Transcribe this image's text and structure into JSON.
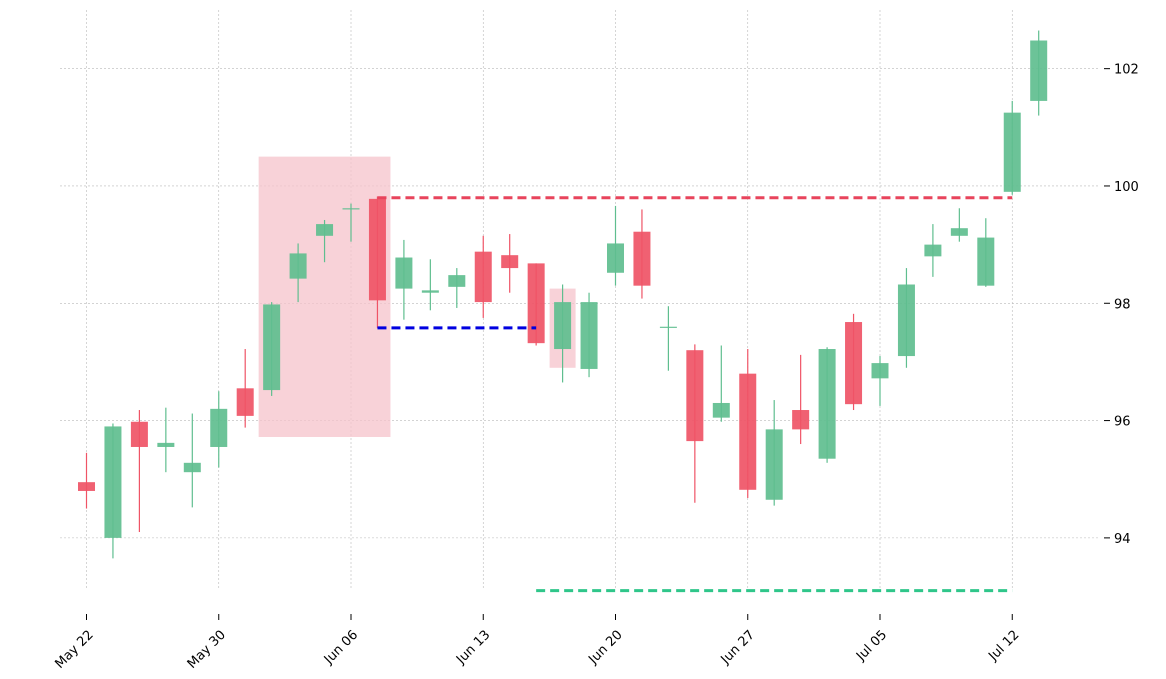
{
  "chart_data": {
    "type": "candlestick",
    "title": "",
    "xlabel": "",
    "ylabel": "",
    "ylim": [
      92.6,
      103.0
    ],
    "grid": true,
    "colors": {
      "up": "#5fbe8f",
      "down": "#ef5466",
      "highlight": "#f6c3cb",
      "resistance": "#e8445c",
      "entry": "#0000e0",
      "target": "#2fc68a",
      "grid": "#b9b9b9"
    },
    "y_ticks": [
      94,
      96,
      98,
      100,
      102
    ],
    "x_ticks": [
      "May 22",
      "May 30",
      "Jun 06",
      "Jun 13",
      "Jun 20",
      "Jun 27",
      "Jul 05",
      "Jul 12"
    ],
    "candles": [
      {
        "open": 94.95,
        "high": 95.45,
        "low": 94.5,
        "close": 94.8
      },
      {
        "open": 94.0,
        "high": 95.95,
        "low": 93.65,
        "close": 95.9
      },
      {
        "open": 95.98,
        "high": 96.18,
        "low": 94.1,
        "close": 95.55
      },
      {
        "open": 95.55,
        "high": 96.22,
        "low": 95.12,
        "close": 95.62
      },
      {
        "open": 95.12,
        "high": 96.12,
        "low": 94.52,
        "close": 95.28
      },
      {
        "open": 95.55,
        "high": 96.5,
        "low": 95.2,
        "close": 96.2
      },
      {
        "open": 96.55,
        "high": 97.22,
        "low": 95.88,
        "close": 96.08
      },
      {
        "open": 96.52,
        "high": 98.02,
        "low": 96.42,
        "close": 97.98
      },
      {
        "open": 98.42,
        "high": 99.02,
        "low": 98.02,
        "close": 98.85
      },
      {
        "open": 99.15,
        "high": 99.42,
        "low": 98.7,
        "close": 99.35
      },
      {
        "open": 99.62,
        "high": 99.7,
        "low": 99.05,
        "close": 99.62
      },
      {
        "open": 99.78,
        "high": 99.82,
        "low": 97.58,
        "close": 98.05
      },
      {
        "open": 98.25,
        "high": 99.08,
        "low": 97.72,
        "close": 98.78
      },
      {
        "open": 98.18,
        "high": 98.75,
        "low": 97.88,
        "close": 98.22
      },
      {
        "open": 98.28,
        "high": 98.6,
        "low": 97.92,
        "close": 98.48
      },
      {
        "open": 98.88,
        "high": 99.15,
        "low": 97.75,
        "close": 98.02
      },
      {
        "open": 98.82,
        "high": 99.18,
        "low": 98.18,
        "close": 98.6
      },
      {
        "open": 98.68,
        "high": 98.68,
        "low": 97.28,
        "close": 97.32
      },
      {
        "open": 97.22,
        "high": 98.32,
        "low": 96.65,
        "close": 98.02
      },
      {
        "open": 96.88,
        "high": 98.18,
        "low": 96.74,
        "close": 98.02
      },
      {
        "open": 98.52,
        "high": 99.66,
        "low": 98.3,
        "close": 99.02
      },
      {
        "open": 99.22,
        "high": 99.6,
        "low": 98.08,
        "close": 98.3
      },
      {
        "open": 97.6,
        "high": 97.95,
        "low": 96.85,
        "close": 97.6
      },
      {
        "open": 97.2,
        "high": 97.3,
        "low": 94.6,
        "close": 95.65
      },
      {
        "open": 96.05,
        "high": 97.28,
        "low": 95.98,
        "close": 96.3
      },
      {
        "open": 96.8,
        "high": 97.22,
        "low": 94.68,
        "close": 94.82
      },
      {
        "open": 94.65,
        "high": 96.35,
        "low": 94.55,
        "close": 95.85
      },
      {
        "open": 96.18,
        "high": 97.12,
        "low": 95.6,
        "close": 95.85
      },
      {
        "open": 95.35,
        "high": 97.25,
        "low": 95.28,
        "close": 97.22
      },
      {
        "open": 97.68,
        "high": 97.82,
        "low": 96.18,
        "close": 96.28
      },
      {
        "open": 96.72,
        "high": 97.1,
        "low": 96.25,
        "close": 96.98
      },
      {
        "open": 97.1,
        "high": 98.6,
        "low": 96.9,
        "close": 98.32
      },
      {
        "open": 98.8,
        "high": 99.35,
        "low": 98.45,
        "close": 99.0
      },
      {
        "open": 99.15,
        "high": 99.62,
        "low": 99.05,
        "close": 99.28
      },
      {
        "open": 98.3,
        "high": 99.45,
        "low": 98.28,
        "close": 99.12
      },
      {
        "open": 99.9,
        "high": 101.45,
        "low": 99.85,
        "close": 101.25
      },
      {
        "open": 101.45,
        "high": 102.65,
        "low": 101.2,
        "close": 102.48
      }
    ],
    "highlights": [
      {
        "from_index": 7,
        "to_index": 11,
        "low": 95.72,
        "high": 100.5
      },
      {
        "from_index": 18,
        "to_index": 18,
        "low": 96.9,
        "high": 98.25
      }
    ],
    "levels": [
      {
        "name": "resistance",
        "value": 99.8,
        "from_index": 11,
        "to_index": 35
      },
      {
        "name": "entry",
        "value": 97.58,
        "from_index": 11,
        "to_index": 17
      },
      {
        "name": "target",
        "value": 93.1,
        "from_index": 17,
        "to_index": 35
      }
    ]
  }
}
